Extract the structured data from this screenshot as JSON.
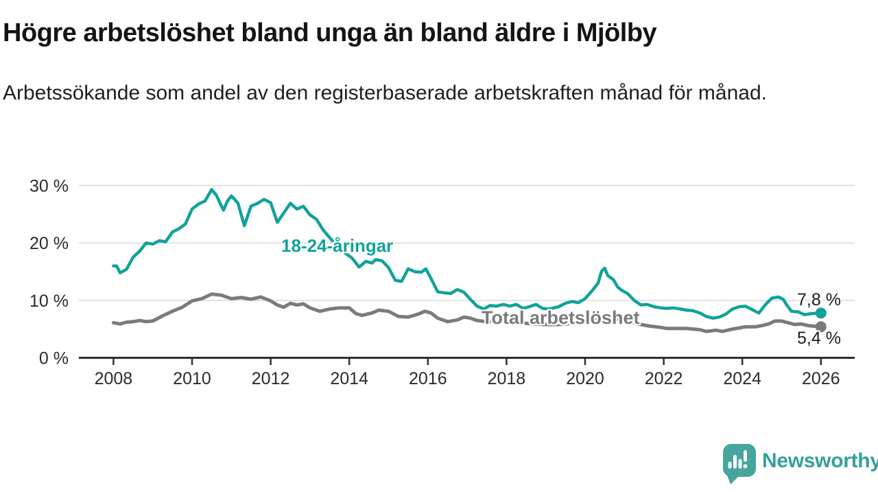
{
  "header": {
    "title": "Högre arbetslöshet bland unga än bland äldre i Mjölby",
    "subtitle": "Arbetssökande som andel av den registerbaserade arbetskraften månad för månad."
  },
  "footer": {
    "brand": "Newsworthy"
  },
  "colors": {
    "accent_teal": "#11a29a",
    "line_gray": "#7b7b7b",
    "gridline": "#d9d9d9",
    "axis": "#2f2f2f",
    "logo_icon": "#47a59e",
    "logo_text": "#35a09b"
  },
  "chart_data": {
    "type": "line",
    "title": "Högre arbetslöshet bland unga än bland äldre i Mjölby",
    "subtitle": "Arbetssökande som andel av den registerbaserade arbetskraften månad för månad.",
    "unit": "%",
    "grid": true,
    "x_axis": {
      "lim": [
        2007.1,
        2026.9
      ],
      "ticks": [
        {
          "value": 2008,
          "label": "2008"
        },
        {
          "value": 2010,
          "label": "2010"
        },
        {
          "value": 2012,
          "label": "2012"
        },
        {
          "value": 2014,
          "label": "2014"
        },
        {
          "value": 2016,
          "label": "2016"
        },
        {
          "value": 2018,
          "label": "2018"
        },
        {
          "value": 2020,
          "label": "2020"
        },
        {
          "value": 2022,
          "label": "2022"
        },
        {
          "value": 2024,
          "label": "2024"
        },
        {
          "value": 2026,
          "label": "2026"
        }
      ]
    },
    "y_axis": {
      "lim": [
        0,
        32
      ],
      "ticks": [
        {
          "value": 0,
          "label": "0 %"
        },
        {
          "value": 10,
          "label": "10 %"
        },
        {
          "value": 20,
          "label": "20 %"
        },
        {
          "value": 30,
          "label": "30 %"
        }
      ]
    },
    "series": [
      {
        "name": "18-24-åringar",
        "color": "#11a29a",
        "stroke_width": 4.5,
        "end_value": 7.8,
        "end_label": "7,8 %",
        "points": [
          [
            2008.0,
            16.0
          ],
          [
            2008.08,
            16.0
          ],
          [
            2008.17,
            14.8
          ],
          [
            2008.33,
            15.4
          ],
          [
            2008.5,
            17.5
          ],
          [
            2008.67,
            18.6
          ],
          [
            2008.83,
            20.0
          ],
          [
            2009.0,
            19.8
          ],
          [
            2009.17,
            20.4
          ],
          [
            2009.33,
            20.2
          ],
          [
            2009.5,
            21.9
          ],
          [
            2009.67,
            22.5
          ],
          [
            2009.83,
            23.3
          ],
          [
            2010.0,
            25.9
          ],
          [
            2010.17,
            26.8
          ],
          [
            2010.33,
            27.3
          ],
          [
            2010.5,
            29.3
          ],
          [
            2010.62,
            28.3
          ],
          [
            2010.72,
            26.8
          ],
          [
            2010.8,
            25.7
          ],
          [
            2010.9,
            27.3
          ],
          [
            2011.0,
            28.2
          ],
          [
            2011.17,
            26.9
          ],
          [
            2011.33,
            23.0
          ],
          [
            2011.5,
            26.4
          ],
          [
            2011.67,
            26.9
          ],
          [
            2011.83,
            27.6
          ],
          [
            2012.0,
            27.0
          ],
          [
            2012.17,
            23.6
          ],
          [
            2012.33,
            25.2
          ],
          [
            2012.5,
            26.9
          ],
          [
            2012.67,
            25.9
          ],
          [
            2012.83,
            26.4
          ],
          [
            2013.0,
            24.9
          ],
          [
            2013.17,
            24.1
          ],
          [
            2013.33,
            22.3
          ],
          [
            2013.58,
            20.3
          ],
          [
            2013.83,
            18.6
          ],
          [
            2014.08,
            17.3
          ],
          [
            2014.25,
            15.8
          ],
          [
            2014.42,
            16.8
          ],
          [
            2014.58,
            16.5
          ],
          [
            2014.67,
            17.1
          ],
          [
            2014.83,
            16.9
          ],
          [
            2015.0,
            15.7
          ],
          [
            2015.17,
            13.5
          ],
          [
            2015.33,
            13.3
          ],
          [
            2015.5,
            15.5
          ],
          [
            2015.67,
            15.0
          ],
          [
            2015.83,
            14.9
          ],
          [
            2015.95,
            15.5
          ],
          [
            2016.08,
            13.8
          ],
          [
            2016.25,
            11.5
          ],
          [
            2016.42,
            11.3
          ],
          [
            2016.58,
            11.2
          ],
          [
            2016.75,
            11.9
          ],
          [
            2016.92,
            11.4
          ],
          [
            2017.08,
            10.2
          ],
          [
            2017.25,
            9.0
          ],
          [
            2017.42,
            8.5
          ],
          [
            2017.58,
            9.1
          ],
          [
            2017.75,
            9.0
          ],
          [
            2017.92,
            9.3
          ],
          [
            2018.08,
            9.0
          ],
          [
            2018.25,
            9.3
          ],
          [
            2018.42,
            8.6
          ],
          [
            2018.58,
            8.9
          ],
          [
            2018.75,
            9.3
          ],
          [
            2018.92,
            8.6
          ],
          [
            2019.08,
            8.5
          ],
          [
            2019.33,
            8.9
          ],
          [
            2019.5,
            9.5
          ],
          [
            2019.67,
            9.8
          ],
          [
            2019.83,
            9.6
          ],
          [
            2020.0,
            10.3
          ],
          [
            2020.17,
            11.6
          ],
          [
            2020.33,
            13.0
          ],
          [
            2020.42,
            15.1
          ],
          [
            2020.5,
            15.6
          ],
          [
            2020.58,
            14.3
          ],
          [
            2020.72,
            13.6
          ],
          [
            2020.83,
            12.3
          ],
          [
            2020.92,
            11.8
          ],
          [
            2021.08,
            11.2
          ],
          [
            2021.25,
            10.0
          ],
          [
            2021.42,
            9.2
          ],
          [
            2021.58,
            9.3
          ],
          [
            2021.75,
            8.9
          ],
          [
            2021.92,
            8.7
          ],
          [
            2022.08,
            8.6
          ],
          [
            2022.25,
            8.7
          ],
          [
            2022.42,
            8.5
          ],
          [
            2022.58,
            8.3
          ],
          [
            2022.75,
            8.2
          ],
          [
            2022.92,
            7.8
          ],
          [
            2023.08,
            7.2
          ],
          [
            2023.25,
            6.9
          ],
          [
            2023.42,
            7.1
          ],
          [
            2023.58,
            7.6
          ],
          [
            2023.75,
            8.5
          ],
          [
            2023.92,
            8.9
          ],
          [
            2024.08,
            9.0
          ],
          [
            2024.25,
            8.4
          ],
          [
            2024.42,
            7.8
          ],
          [
            2024.58,
            9.2
          ],
          [
            2024.75,
            10.4
          ],
          [
            2024.92,
            10.6
          ],
          [
            2025.04,
            10.2
          ],
          [
            2025.12,
            9.3
          ],
          [
            2025.25,
            8.1
          ],
          [
            2025.42,
            8.0
          ],
          [
            2025.58,
            7.5
          ],
          [
            2025.75,
            7.7
          ],
          [
            2026.0,
            7.8
          ]
        ]
      },
      {
        "name": "Total arbetslöshet",
        "color": "#7b7b7b",
        "stroke_width": 5,
        "end_value": 5.4,
        "end_label": "5,4 %",
        "points": [
          [
            2008.0,
            6.1
          ],
          [
            2008.17,
            5.9
          ],
          [
            2008.33,
            6.2
          ],
          [
            2008.5,
            6.3
          ],
          [
            2008.67,
            6.5
          ],
          [
            2008.83,
            6.3
          ],
          [
            2009.0,
            6.4
          ],
          [
            2009.25,
            7.3
          ],
          [
            2009.5,
            8.1
          ],
          [
            2009.75,
            8.8
          ],
          [
            2010.0,
            9.9
          ],
          [
            2010.25,
            10.3
          ],
          [
            2010.5,
            11.1
          ],
          [
            2010.75,
            10.9
          ],
          [
            2011.0,
            10.3
          ],
          [
            2011.25,
            10.5
          ],
          [
            2011.5,
            10.2
          ],
          [
            2011.75,
            10.6
          ],
          [
            2012.0,
            9.9
          ],
          [
            2012.17,
            9.2
          ],
          [
            2012.33,
            8.8
          ],
          [
            2012.5,
            9.5
          ],
          [
            2012.67,
            9.2
          ],
          [
            2012.83,
            9.4
          ],
          [
            2013.0,
            8.7
          ],
          [
            2013.25,
            8.1
          ],
          [
            2013.5,
            8.5
          ],
          [
            2013.75,
            8.7
          ],
          [
            2014.0,
            8.7
          ],
          [
            2014.17,
            7.7
          ],
          [
            2014.33,
            7.4
          ],
          [
            2014.58,
            7.8
          ],
          [
            2014.75,
            8.3
          ],
          [
            2015.0,
            8.1
          ],
          [
            2015.25,
            7.2
          ],
          [
            2015.5,
            7.1
          ],
          [
            2015.75,
            7.6
          ],
          [
            2015.92,
            8.1
          ],
          [
            2016.08,
            7.8
          ],
          [
            2016.25,
            6.9
          ],
          [
            2016.5,
            6.3
          ],
          [
            2016.75,
            6.6
          ],
          [
            2016.92,
            7.1
          ],
          [
            2017.08,
            6.9
          ],
          [
            2017.25,
            6.5
          ],
          [
            2017.5,
            6.3
          ],
          [
            2017.75,
            6.3
          ],
          [
            2018.0,
            6.2
          ],
          [
            2018.33,
            6.1
          ],
          [
            2018.67,
            5.9
          ],
          [
            2019.0,
            5.8
          ],
          [
            2019.33,
            5.8
          ],
          [
            2019.67,
            6.0
          ],
          [
            2020.0,
            6.3
          ],
          [
            2020.33,
            7.0
          ],
          [
            2020.5,
            7.2
          ],
          [
            2020.75,
            6.9
          ],
          [
            2021.0,
            6.4
          ],
          [
            2021.33,
            5.9
          ],
          [
            2021.67,
            5.5
          ],
          [
            2021.92,
            5.3
          ],
          [
            2022.08,
            5.1
          ],
          [
            2022.33,
            5.1
          ],
          [
            2022.58,
            5.1
          ],
          [
            2022.75,
            5.0
          ],
          [
            2022.92,
            4.9
          ],
          [
            2023.08,
            4.6
          ],
          [
            2023.33,
            4.8
          ],
          [
            2023.5,
            4.6
          ],
          [
            2023.75,
            5.0
          ],
          [
            2023.92,
            5.2
          ],
          [
            2024.08,
            5.4
          ],
          [
            2024.33,
            5.4
          ],
          [
            2024.5,
            5.6
          ],
          [
            2024.67,
            5.9
          ],
          [
            2024.83,
            6.4
          ],
          [
            2025.0,
            6.4
          ],
          [
            2025.17,
            6.1
          ],
          [
            2025.33,
            5.8
          ],
          [
            2025.5,
            5.9
          ],
          [
            2025.67,
            5.6
          ],
          [
            2026.0,
            5.4
          ]
        ]
      }
    ],
    "legend_position": "inline-annotations"
  }
}
